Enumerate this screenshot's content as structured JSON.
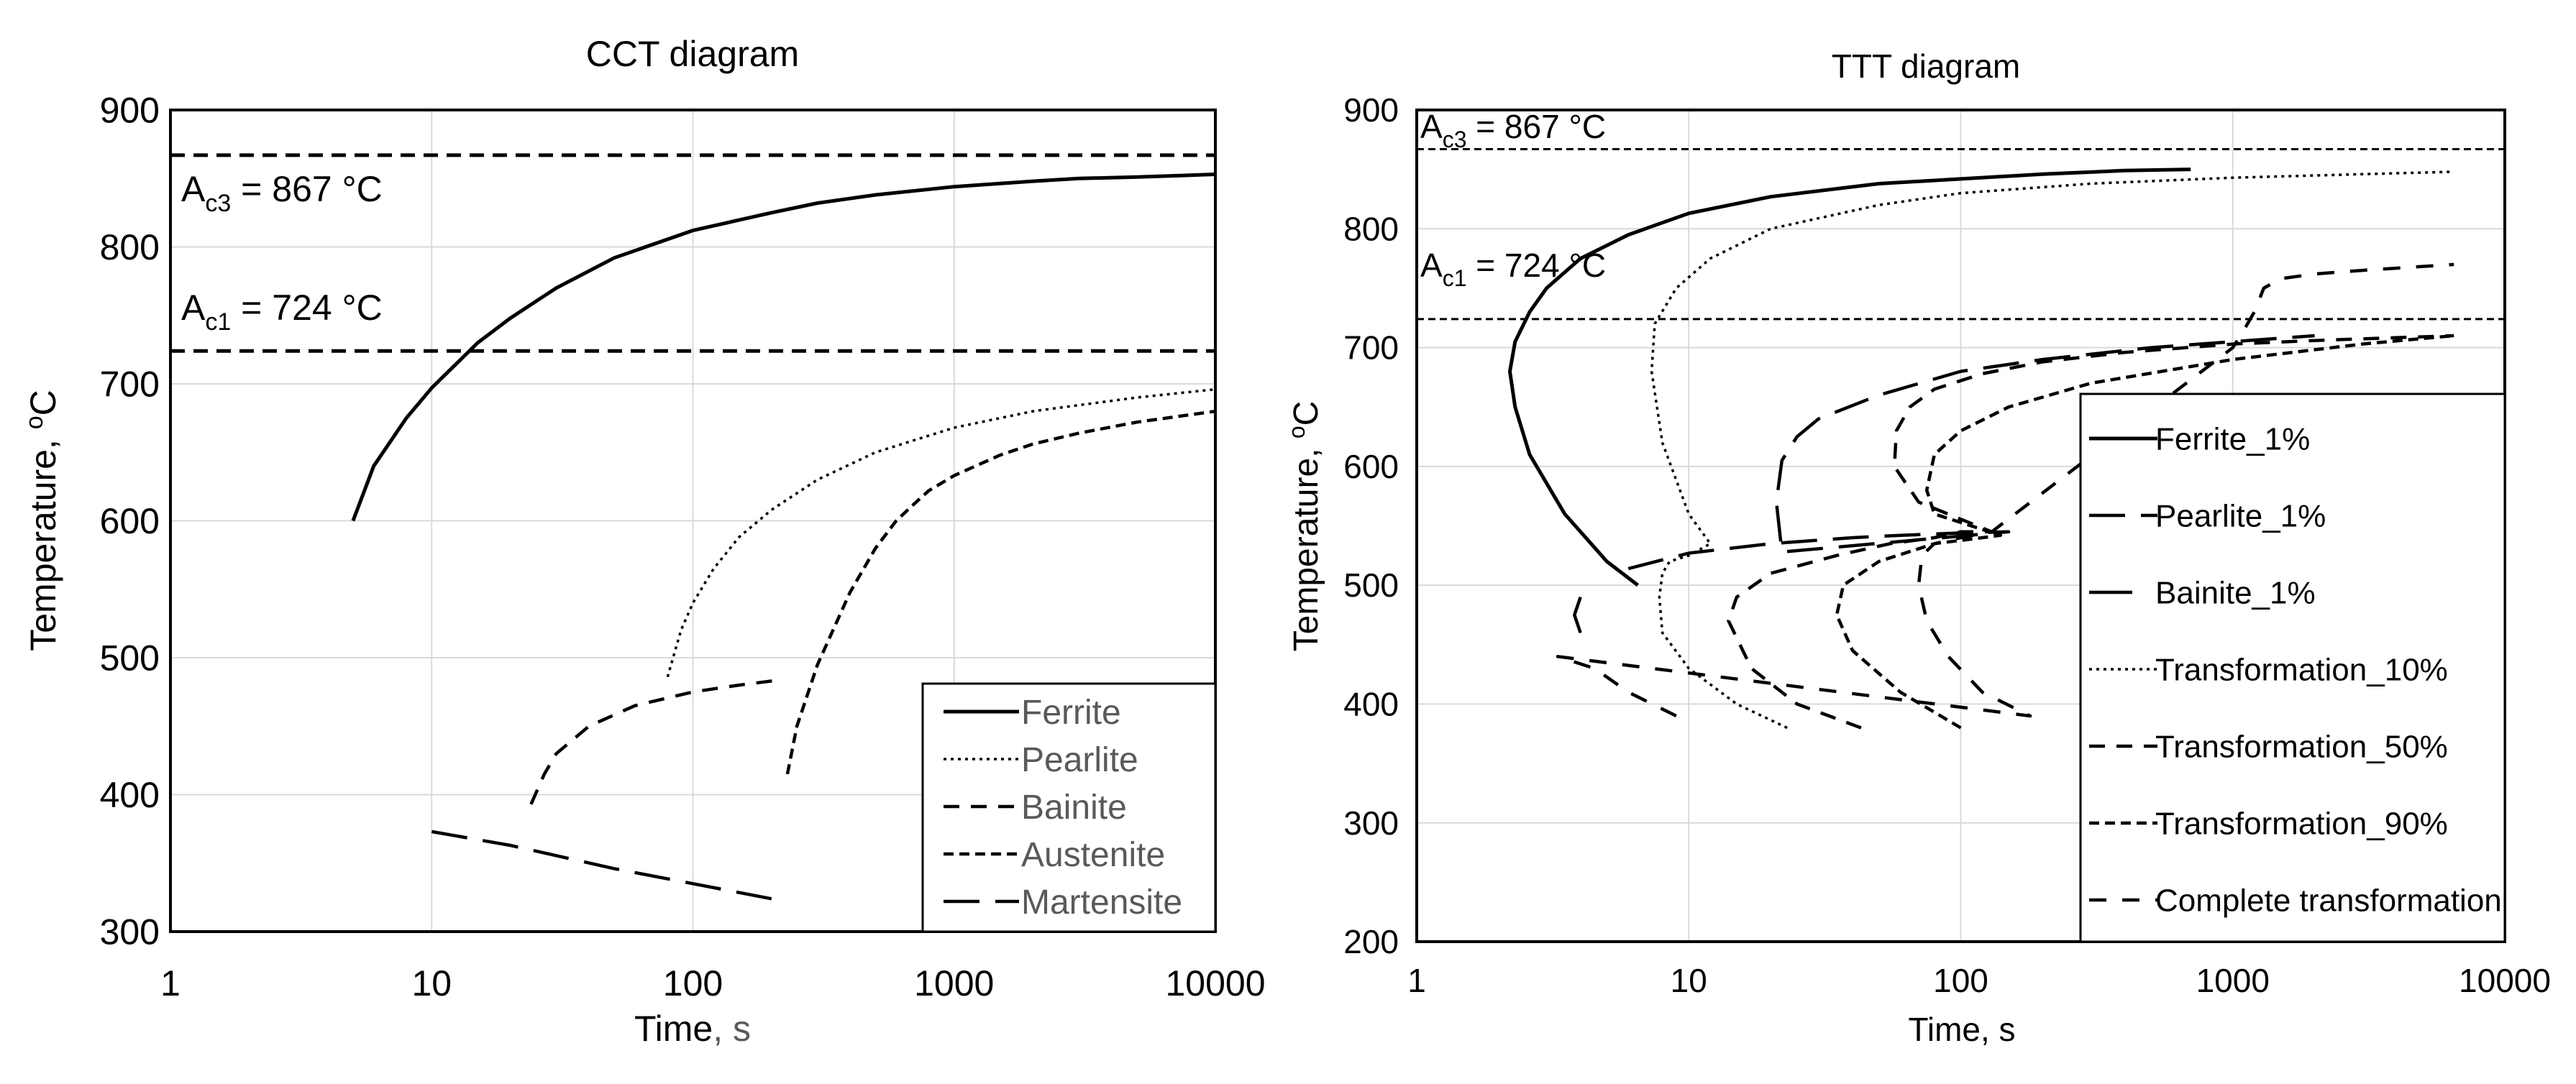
{
  "chart_data": [
    {
      "type": "line",
      "title": "CCT diagram",
      "xlabel": "Time",
      "xlabel_suffix": ", s",
      "ylabel": "Temperature, °C",
      "ylabel_parts": [
        "Temperature, ",
        "o",
        "C"
      ],
      "xscale": "log",
      "xlim": [
        1,
        10000
      ],
      "ylim": [
        300,
        900
      ],
      "xticks": [
        1,
        10,
        100,
        1000,
        10000
      ],
      "xtick_labels": [
        "1",
        "10",
        "100",
        "1000",
        "10000"
      ],
      "yticks": [
        300,
        400,
        500,
        600,
        700,
        800,
        900
      ],
      "ytick_labels": [
        "300",
        "400",
        "500",
        "600",
        "700",
        "800",
        "900"
      ],
      "grid": true,
      "legend_position": "bottom-right",
      "reference_lines": [
        {
          "name": "Ac3",
          "y": 867,
          "label_main": "A",
          "label_sub": "c3",
          "label_rest": " = 867 °C"
        },
        {
          "name": "Ac1",
          "y": 724,
          "label_main": "A",
          "label_sub": "c1",
          "label_rest": " = 724 °C"
        }
      ],
      "series": [
        {
          "name": "Ferrite",
          "dash": "solid",
          "x": [
            5,
            6,
            8,
            10,
            15,
            20,
            30,
            50,
            100,
            200,
            300,
            500,
            1000,
            2000,
            3000,
            5000,
            10000
          ],
          "y": [
            600,
            640,
            675,
            697,
            730,
            748,
            770,
            792,
            812,
            825,
            832,
            838,
            844,
            848,
            850,
            851,
            853
          ]
        },
        {
          "name": "Pearlite",
          "dash": "dot",
          "x": [
            80,
            90,
            100,
            120,
            150,
            200,
            300,
            500,
            1000,
            2000,
            5000,
            10000
          ],
          "y": [
            486,
            520,
            540,
            565,
            588,
            608,
            630,
            650,
            668,
            680,
            690,
            696
          ]
        },
        {
          "name": "Bainite",
          "dash": "dash",
          "x": [
            24,
            27,
            30,
            40,
            60,
            100,
            150,
            220
          ],
          "y": [
            393,
            415,
            430,
            450,
            465,
            475,
            480,
            484
          ]
        },
        {
          "name": "Austenite",
          "dash": "shortdash",
          "x": [
            230,
            250,
            300,
            400,
            500,
            600,
            700,
            800,
            1000,
            1500,
            2000,
            3000,
            5000,
            10000
          ],
          "y": [
            415,
            450,
            495,
            548,
            580,
            600,
            612,
            622,
            633,
            648,
            656,
            664,
            672,
            680
          ]
        },
        {
          "name": "Martensite",
          "dash": "longdash",
          "x": [
            10,
            20,
            50,
            100,
            200
          ],
          "y": [
            373,
            363,
            346,
            335,
            324
          ]
        }
      ]
    },
    {
      "type": "line",
      "title": "TTT diagram",
      "xlabel": "Time, s",
      "ylabel": "Temperature, °C",
      "ylabel_parts": [
        "Temperature, ",
        "o",
        "C"
      ],
      "xscale": "log",
      "xlim": [
        1,
        10000
      ],
      "ylim": [
        200,
        900
      ],
      "xticks": [
        1,
        10,
        100,
        1000,
        10000
      ],
      "xtick_labels": [
        "1",
        "10",
        "100",
        "1000",
        "10000"
      ],
      "yticks": [
        200,
        300,
        400,
        500,
        600,
        700,
        800,
        900
      ],
      "ytick_labels": [
        "200",
        "300",
        "400",
        "500",
        "600",
        "700",
        "800",
        "900"
      ],
      "grid": true,
      "legend_position": "right",
      "reference_lines": [
        {
          "name": "Ac3",
          "y": 867,
          "label_main": "A",
          "label_sub": "c3",
          "label_rest": " = 867 °C"
        },
        {
          "name": "Ac1",
          "y": 724,
          "label_main": "A",
          "label_sub": "c1",
          "label_rest": " = 724 °C"
        }
      ],
      "series": [
        {
          "name": "Ferrite_1%",
          "dash": "solid",
          "x": [
            6.5,
            5,
            3.5,
            2.6,
            2.3,
            2.2,
            2.3,
            2.6,
            3,
            4,
            6,
            10,
            20,
            50,
            100,
            200,
            400,
            700
          ],
          "y": [
            500,
            520,
            560,
            610,
            650,
            680,
            705,
            730,
            750,
            775,
            795,
            813,
            827,
            838,
            842,
            846,
            849,
            850
          ]
        },
        {
          "name": "Pearlite_1%",
          "dash": "longdash",
          "x": [
            6,
            10,
            20,
            40,
            60,
            100,
            150,
            22,
            21,
            22,
            25,
            30,
            50,
            100,
            200,
            500,
            1000,
            2000
          ],
          "y": [
            514,
            527,
            535,
            540,
            542,
            544,
            545,
            528,
            570,
            605,
            625,
            640,
            660,
            680,
            690,
            700,
            705,
            710
          ]
        },
        {
          "name": "Bainite_1%",
          "dash": "longdash2",
          "x": [
            4,
            3.8,
            4
          ],
          "y": [
            490,
            475,
            460
          ]
        },
        {
          "name": "Transformation_10%",
          "dash": "dot",
          "x": [
            23,
            15,
            10,
            8,
            7.8,
            8,
            8.5,
            10,
            12,
            10,
            8,
            7.3,
            7.5,
            9,
            12,
            20,
            50,
            100,
            300,
            1000,
            3000,
            6500
          ],
          "y": [
            380,
            400,
            430,
            460,
            490,
            510,
            520,
            525,
            535,
            560,
            620,
            680,
            720,
            750,
            775,
            800,
            820,
            830,
            838,
            843,
            846,
            848
          ]
        },
        {
          "name": "Transformation_50%",
          "dash": "dash",
          "x": [
            43,
            25,
            17,
            14,
            15,
            20,
            35,
            55,
            80,
            100,
            130,
            70,
            57,
            58,
            65,
            80,
            120,
            200,
            400,
            1000,
            2000,
            6500
          ],
          "y": [
            380,
            400,
            430,
            470,
            490,
            510,
            525,
            535,
            540,
            545,
            545,
            570,
            600,
            630,
            650,
            665,
            678,
            688,
            696,
            703,
            706,
            710
          ]
        },
        {
          "name": "Transformation_90%",
          "dash": "shortdash",
          "x": [
            100,
            60,
            40,
            35,
            37,
            50,
            80,
            120,
            140,
            80,
            75,
            80,
            100,
            150,
            300,
            1000,
            3000,
            6500
          ],
          "y": [
            380,
            410,
            445,
            475,
            500,
            520,
            535,
            540,
            542,
            560,
            580,
            610,
            630,
            650,
            670,
            690,
            703,
            710
          ]
        },
        {
          "name": "Complete transformation",
          "dash": "dash2",
          "x": [
            9,
            6,
            4.5,
            3.3,
            180,
            120,
            90,
            75,
            70,
            72,
            80,
            100,
            130,
            1000,
            1100,
            1200,
            1300,
            1500,
            2000,
            3000,
            6500
          ],
          "y": [
            390,
            410,
            430,
            440,
            390,
            410,
            440,
            470,
            500,
            525,
            535,
            540,
            545,
            700,
            715,
            730,
            750,
            758,
            762,
            765,
            770
          ]
        }
      ]
    }
  ]
}
